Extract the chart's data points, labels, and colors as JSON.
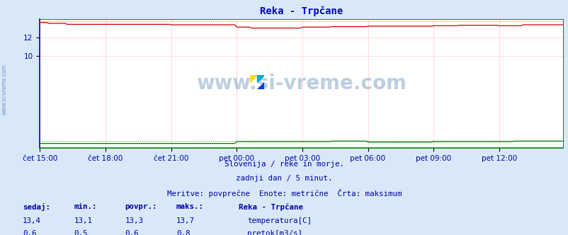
{
  "title": "Reka - Trpčane",
  "title_color": "#0000cc",
  "background_color": "#d8e8f8",
  "plot_bg_color": "#ffffff",
  "grid_color": "#ffcccc",
  "border_color": "#0000cc",
  "tick_color": "#0000aa",
  "watermark_text": "www.si-vreme.com",
  "watermark_color": "#4477aa",
  "watermark_alpha": 0.35,
  "subtitle1": "Slovenija / reke in morje.",
  "subtitle2": "zadnji dan / 5 minut.",
  "subtitle3": "Meritve: povprečne  Enote: metrične  Črta: maksimum",
  "subtitle_color": "#0000aa",
  "x_tick_labels": [
    "čet 15:00",
    "čet 18:00",
    "čet 21:00",
    "pet 00:00",
    "pet 03:00",
    "pet 06:00",
    "pet 09:00",
    "pet 12:00"
  ],
  "x_tick_positions": [
    0,
    36,
    72,
    108,
    144,
    180,
    216,
    252
  ],
  "n_points": 288,
  "ylim": [
    0,
    14.0
  ],
  "temp_color": "#cc0000",
  "temp_max_color": "#ff6666",
  "flow_color": "#007700",
  "flow_max_color": "#44bb44",
  "height_color": "#4444ff",
  "left_border_color": "#0000cc",
  "bottom_border_color": "#008800",
  "legend_title": "Reka - Trpčane",
  "legend_title_color": "#0000aa",
  "legend_temp_label": "temperatura[C]",
  "legend_flow_label": "pretok[m3/s]",
  "stats_color": "#0000aa",
  "stats_headers": [
    "sedaj:",
    "min.:",
    "povpr.:",
    "maks.:"
  ],
  "stats_temp": [
    "13,4",
    "13,1",
    "13,3",
    "13,7"
  ],
  "stats_flow": [
    "0,6",
    "0,5",
    "0,6",
    "0,8"
  ],
  "side_watermark": "www.si-vreme.com"
}
